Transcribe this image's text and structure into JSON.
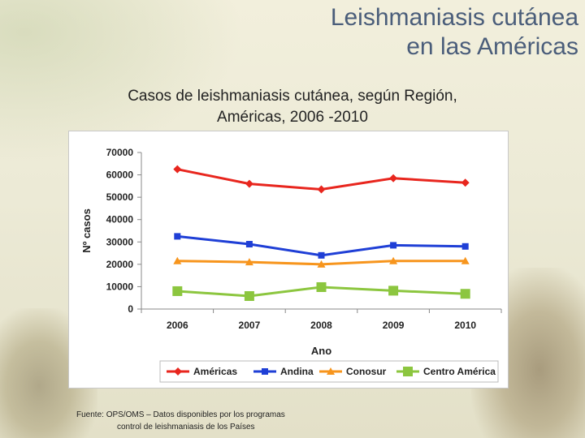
{
  "slide": {
    "title_line1": "Leishmaniasis cutánea",
    "title_line2": "en las Américas",
    "subtitle_line1": "Casos de leishmaniasis cutánea, según Región,",
    "subtitle_line2": "Américas, 2006 -2010",
    "source_line1": "Fuente: OPS/OMS – Datos disponibles por los programas",
    "source_line2": "control de leishmaniasis de los Países"
  },
  "chart_data": {
    "type": "line",
    "title": "",
    "xlabel": "Ano",
    "ylabel": "Nº casos",
    "categories": [
      "2006",
      "2007",
      "2008",
      "2009",
      "2010"
    ],
    "ylim": [
      0,
      70000
    ],
    "yticks": [
      0,
      10000,
      20000,
      30000,
      40000,
      50000,
      60000,
      70000
    ],
    "ytick_labels": [
      "0",
      "10000",
      "20000",
      "30000",
      "40000",
      "50000",
      "60000",
      "70000"
    ],
    "grid": false,
    "legend_position": "bottom",
    "series": [
      {
        "name": "Américas",
        "values": [
          62500,
          56000,
          53500,
          58500,
          56500
        ],
        "color": "#e8261e",
        "marker": "diamond"
      },
      {
        "name": "Andina",
        "values": [
          32500,
          29000,
          24000,
          28500,
          28000
        ],
        "color": "#1f3fd6",
        "marker": "square"
      },
      {
        "name": "Conosur",
        "values": [
          21500,
          21000,
          20000,
          21500,
          21500
        ],
        "color": "#f7951d",
        "marker": "triangle"
      },
      {
        "name": "Centro América",
        "values": [
          8000,
          5800,
          9800,
          8200,
          6800
        ],
        "color": "#8cc63f",
        "marker": "square"
      }
    ]
  }
}
